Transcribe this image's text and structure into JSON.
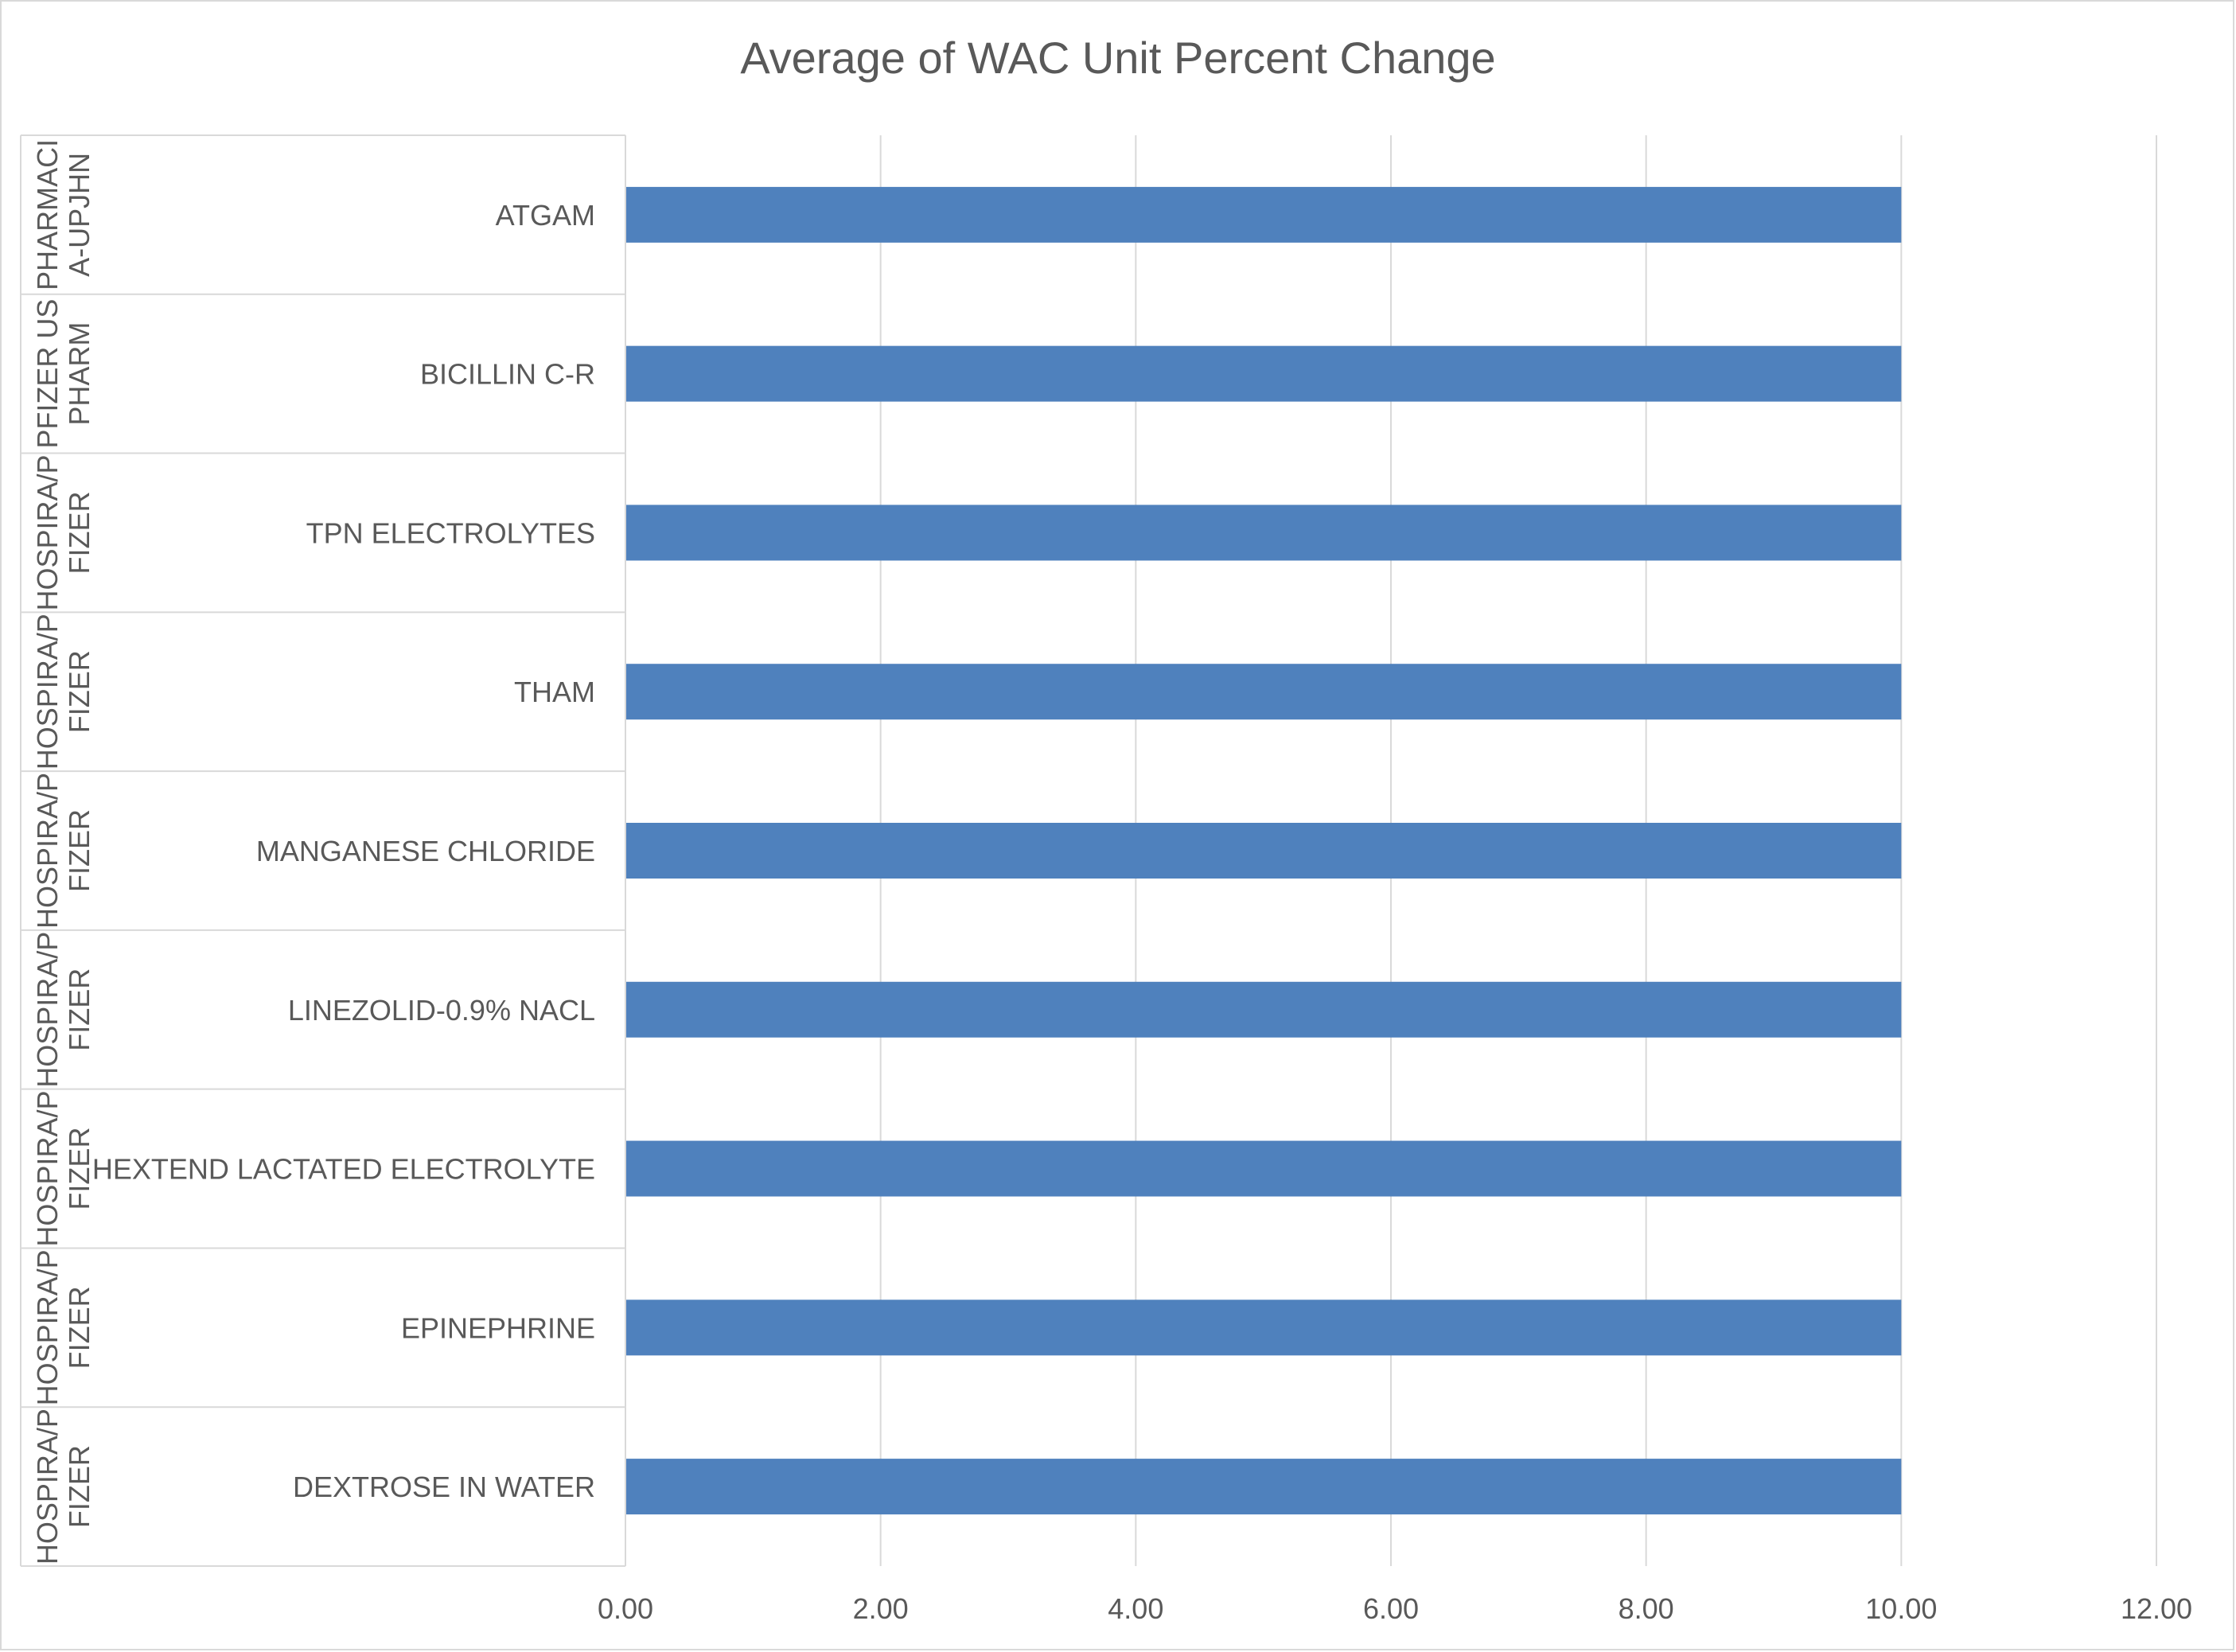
{
  "chart_data": {
    "type": "bar",
    "orientation": "horizontal",
    "title": "Average of WAC Unit Percent Change",
    "xlabel": "",
    "ylabel": "",
    "xlim": [
      0,
      12
    ],
    "ticks": [
      "0.00",
      "2.00",
      "4.00",
      "6.00",
      "8.00",
      "10.00",
      "12.00"
    ],
    "tick_values": [
      0,
      2,
      4,
      6,
      8,
      10,
      12
    ],
    "grid": true,
    "legend": "none",
    "categories": [
      {
        "manufacturer": [
          "PHARMACI",
          "A-UPJHN"
        ],
        "product": "ATGAM"
      },
      {
        "manufacturer": [
          "PFIZER US",
          "PHARM"
        ],
        "product": "BICILLIN C-R"
      },
      {
        "manufacturer": [
          "HOSPIRA/P",
          "FIZER"
        ],
        "product": "TPN ELECTROLYTES"
      },
      {
        "manufacturer": [
          "HOSPIRA/P",
          "FIZER"
        ],
        "product": "THAM"
      },
      {
        "manufacturer": [
          "HOSPIRA/P",
          "FIZER"
        ],
        "product": "MANGANESE CHLORIDE"
      },
      {
        "manufacturer": [
          "HOSPIRA/P",
          "FIZER"
        ],
        "product": "LINEZOLID-0.9% NACL"
      },
      {
        "manufacturer": [
          "HOSPIRA/P",
          "FIZER"
        ],
        "product": "HEXTEND LACTATED ELECTROLYTE"
      },
      {
        "manufacturer": [
          "HOSPIRA/P",
          "FIZER"
        ],
        "product": "EPINEPHRINE"
      },
      {
        "manufacturer": [
          "HOSPIRA/P",
          "FIZER"
        ],
        "product": "DEXTROSE IN WATER"
      }
    ],
    "values": [
      10,
      10,
      10,
      10,
      10,
      10,
      10,
      10,
      10
    ],
    "colors": {
      "bar": "#4f81bd",
      "gridline": "#d9d9d9",
      "text": "#595959",
      "border": "#d9d9d9"
    }
  }
}
